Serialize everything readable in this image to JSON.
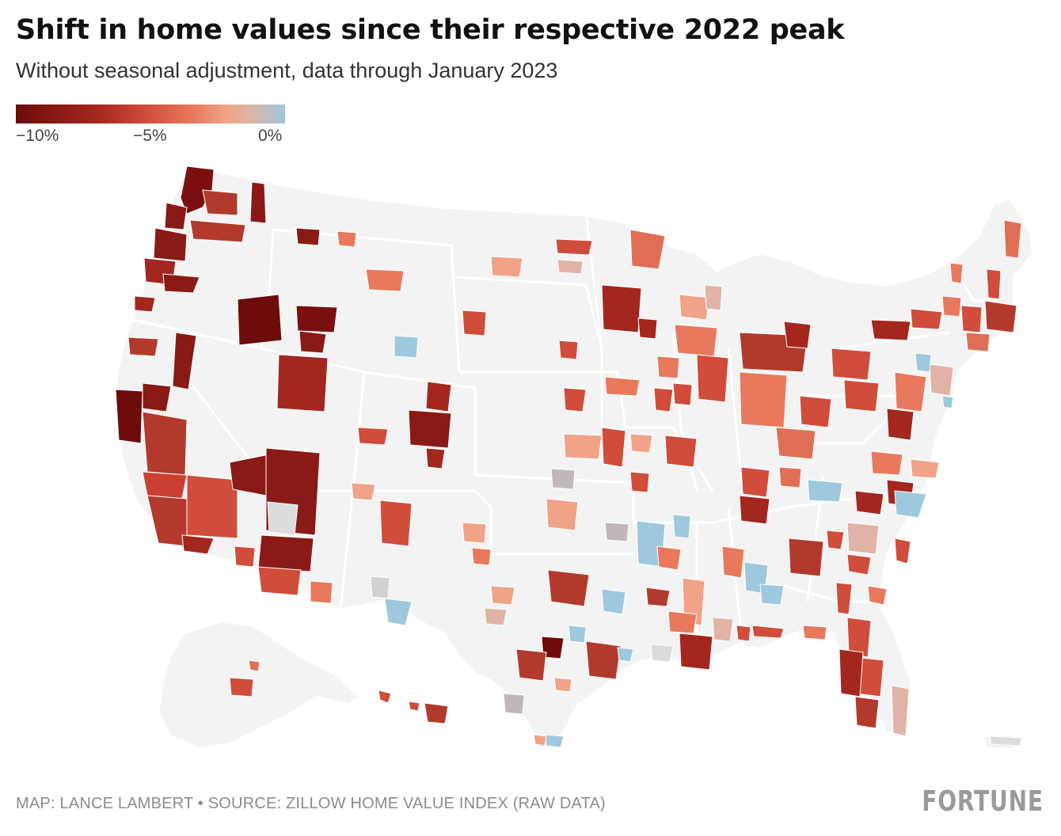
{
  "title": "Shift in home values since their respective 2022 peak",
  "subtitle": "Without seasonal adjustment, data through January 2023",
  "legend": {
    "ticks": [
      "−10%",
      "−5%",
      "0%"
    ],
    "colors": [
      "#6e0b0b",
      "#a3271f",
      "#cf4d3a",
      "#e8795c",
      "#f0a386",
      "#d9b7aa",
      "#9ec8dd"
    ]
  },
  "map": {
    "no_data_color": "#f3f3f3",
    "state_border_color": "#ffffff"
  },
  "footer": {
    "credit": "MAP: LANCE LAMBERT • SOURCE: ZILLOW HOME VALUE INDEX (RAW DATA)",
    "logo": "FORTUNE"
  }
}
